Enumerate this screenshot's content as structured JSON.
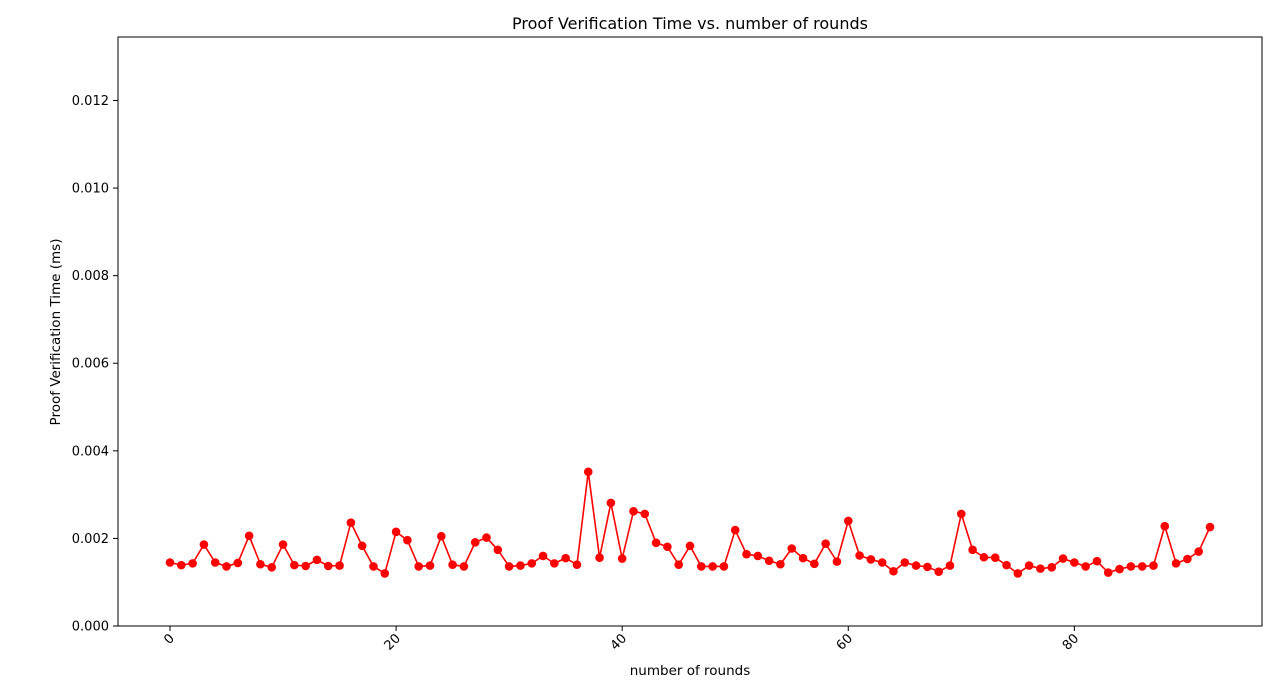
{
  "chart_data": {
    "type": "line",
    "title": "Proof Verification Time vs. number of rounds",
    "xlabel": "number of rounds",
    "ylabel": "Proof Verification Time (ms)",
    "xlim": [
      -4.6,
      96.6
    ],
    "ylim": [
      0,
      0.01345
    ],
    "xticks": [
      0,
      20,
      40,
      60,
      80
    ],
    "xtick_labels": [
      "0",
      "20",
      "40",
      "60",
      "80"
    ],
    "yticks": [
      0,
      0.002,
      0.004,
      0.006,
      0.008,
      0.01,
      0.012
    ],
    "ytick_labels": [
      "0.000",
      "0.002",
      "0.004",
      "0.006",
      "0.008",
      "0.010",
      "0.012"
    ],
    "xtick_rotation": 45,
    "grid": false,
    "series": [
      {
        "color": "#ff0000",
        "marker": "circle",
        "x": [
          0,
          1,
          2,
          3,
          4,
          5,
          6,
          7,
          8,
          9,
          10,
          11,
          12,
          13,
          14,
          15,
          16,
          17,
          18,
          19,
          20,
          21,
          22,
          23,
          24,
          25,
          26,
          27,
          28,
          29,
          30,
          31,
          32,
          33,
          34,
          35,
          36,
          37,
          38,
          39,
          40,
          41,
          42,
          43,
          44,
          45,
          46,
          47,
          48,
          49,
          50,
          51,
          52,
          53,
          54,
          55,
          56,
          57,
          58,
          59,
          60,
          61,
          62,
          63,
          64,
          65,
          66,
          67,
          68,
          69,
          70,
          71,
          72,
          73,
          74,
          75,
          76,
          77,
          78,
          79,
          80,
          81,
          82,
          83,
          84,
          85,
          86,
          87,
          88,
          89,
          90,
          91,
          92
        ],
        "values": [
          0.00145,
          0.00139,
          0.00143,
          0.00186,
          0.00145,
          0.00136,
          0.00144,
          0.00206,
          0.00141,
          0.00134,
          0.00186,
          0.00139,
          0.00137,
          0.00151,
          0.00137,
          0.00138,
          0.00236,
          0.00183,
          0.00136,
          0.0012,
          0.00215,
          0.00196,
          0.00136,
          0.00138,
          0.00205,
          0.0014,
          0.00136,
          0.00191,
          0.00202,
          0.00174,
          0.00136,
          0.00138,
          0.00143,
          0.0016,
          0.00143,
          0.00155,
          0.0014,
          0.00352,
          0.00156,
          0.00281,
          0.00154,
          0.00262,
          0.00256,
          0.0019,
          0.00181,
          0.0014,
          0.00183,
          0.00136,
          0.00136,
          0.00136,
          0.00219,
          0.00164,
          0.0016,
          0.00149,
          0.00141,
          0.00177,
          0.00155,
          0.00142,
          0.00188,
          0.00147,
          0.0024,
          0.00161,
          0.00152,
          0.00145,
          0.00125,
          0.00145,
          0.00138,
          0.00135,
          0.00124,
          0.00138,
          0.00256,
          0.00174,
          0.00157,
          0.00156,
          0.00139,
          0.0012,
          0.00138,
          0.00131,
          0.00134,
          0.00154,
          0.00145,
          0.00136,
          0.00148,
          0.00122,
          0.0013,
          0.00136,
          0.00136,
          0.00138,
          0.00228,
          0.00143,
          0.00153,
          0.0017,
          0.00226
        ]
      }
    ]
  }
}
